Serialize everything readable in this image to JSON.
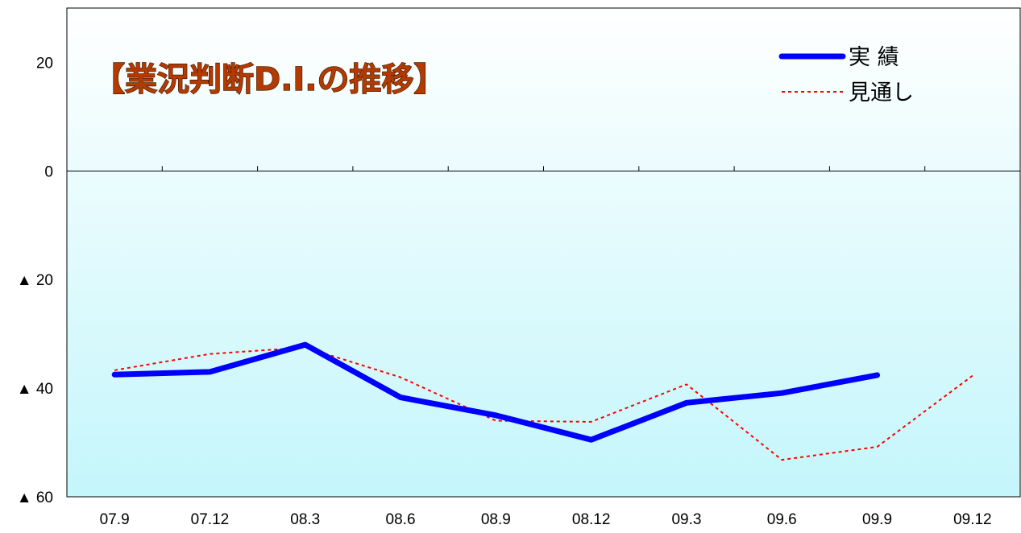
{
  "chart_data": {
    "type": "line",
    "title": "【業況判断D.I.の推移】",
    "categories": [
      "07.9",
      "07.12",
      "08.3",
      "08.6",
      "08.9",
      "08.12",
      "09.3",
      "09.6",
      "09.9",
      "09.12"
    ],
    "y_ticks": [
      {
        "value": 20,
        "label": "20"
      },
      {
        "value": 0,
        "label": "0"
      },
      {
        "value": -20,
        "label": "▲ 20"
      },
      {
        "value": -40,
        "label": "▲ 40"
      },
      {
        "value": -60,
        "label": "▲ 60"
      }
    ],
    "ylim": [
      -60,
      30
    ],
    "series": [
      {
        "name": "実 績",
        "color": "#0000ff",
        "style": "solid",
        "values": [
          -37.5,
          -37.0,
          -32.0,
          -41.7,
          -45.0,
          -49.5,
          -42.7,
          -40.9,
          -37.6,
          null
        ]
      },
      {
        "name": "見通し",
        "color": "#ff0000",
        "style": "dotted",
        "values": [
          -36.7,
          -33.7,
          -32.5,
          -38.0,
          -46.0,
          -46.2,
          -39.3,
          -53.2,
          -50.8,
          -37.7
        ]
      }
    ],
    "background_gradient": [
      "#ffffff",
      "#c4f6fb"
    ],
    "legend_position": "top-right",
    "grid": false
  }
}
